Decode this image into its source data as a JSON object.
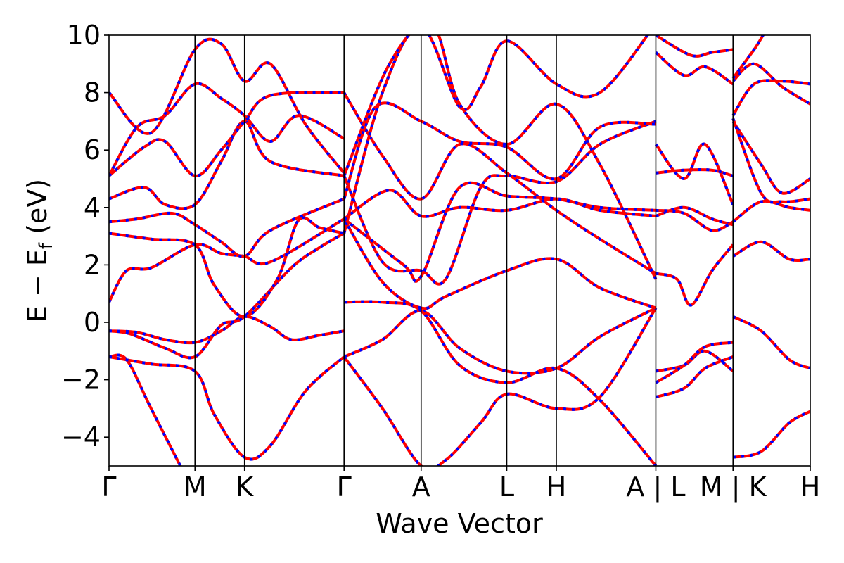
{
  "chart_data": {
    "type": "line",
    "title": "",
    "xlabel": "Wave Vector",
    "ylabel_main": "E − E",
    "ylabel_sub": "f",
    "ylabel_unit": " (eV)",
    "ylim": [
      -5,
      10
    ],
    "yticks": [
      -4,
      -2,
      0,
      2,
      4,
      6,
      8,
      10
    ],
    "ytick_labels": [
      "−4",
      "−2",
      "0",
      "2",
      "4",
      "6",
      "8",
      "10"
    ],
    "xlim": [
      0,
      1
    ],
    "kpoints": [
      {
        "label": "Γ",
        "x": 0.0
      },
      {
        "label": "M",
        "x": 0.1226
      },
      {
        "label": "K",
        "x": 0.1933
      },
      {
        "label": "Γ",
        "x": 0.3352
      },
      {
        "label": "A",
        "x": 0.4451
      },
      {
        "label": "L",
        "x": 0.5672
      },
      {
        "label": "H",
        "x": 0.6379
      },
      {
        "label": "A | L",
        "x": 0.7798
      },
      {
        "label": "M | K",
        "x": 0.8899
      },
      {
        "label": "H",
        "x": 1.0
      }
    ],
    "vlines": [
      0.1226,
      0.1933,
      0.3352,
      0.4451,
      0.5672,
      0.6379,
      0.7798,
      0.8899
    ],
    "grid": false,
    "legend": "none",
    "colors": {
      "primary": "#ff0000",
      "secondary": "#0000ff"
    },
    "series": [
      {
        "values": [
          [
            0.0,
            -1.2
          ],
          [
            0.025,
            -1.3
          ],
          [
            0.06,
            -3.0
          ],
          [
            0.1226,
            -6.0
          ]
        ]
      },
      {
        "values": [
          [
            0.0,
            -1.2
          ],
          [
            0.06,
            -1.45
          ],
          [
            0.1226,
            -1.7
          ],
          [
            0.15,
            -3.2
          ],
          [
            0.1933,
            -4.7
          ],
          [
            0.23,
            -4.3
          ],
          [
            0.28,
            -2.4
          ],
          [
            0.3352,
            -1.2
          ]
        ]
      },
      {
        "values": [
          [
            0.0,
            -0.3
          ],
          [
            0.04,
            -0.35
          ],
          [
            0.08,
            -0.6
          ],
          [
            0.1226,
            -0.7
          ],
          [
            0.16,
            -0.3
          ],
          [
            0.1933,
            0.2
          ],
          [
            0.23,
            -0.15
          ],
          [
            0.26,
            -0.6
          ],
          [
            0.3,
            -0.45
          ],
          [
            0.3352,
            -0.3
          ]
        ]
      },
      {
        "values": [
          [
            0.0,
            -0.3
          ],
          [
            0.03,
            -0.4
          ],
          [
            0.08,
            -0.9
          ],
          [
            0.1226,
            -1.2
          ],
          [
            0.16,
            -0.1
          ],
          [
            0.1933,
            0.2
          ],
          [
            0.26,
            1.9
          ],
          [
            0.3,
            2.6
          ],
          [
            0.3352,
            3.1
          ]
        ]
      },
      {
        "values": [
          [
            0.0,
            0.7
          ],
          [
            0.025,
            1.8
          ],
          [
            0.06,
            1.9
          ],
          [
            0.1226,
            2.7
          ],
          [
            0.16,
            2.4
          ],
          [
            0.1933,
            2.3
          ],
          [
            0.23,
            2.1
          ],
          [
            0.3352,
            3.6
          ]
        ]
      },
      {
        "values": [
          [
            0.0,
            3.1
          ],
          [
            0.06,
            2.9
          ],
          [
            0.1226,
            2.7
          ],
          [
            0.15,
            1.3
          ],
          [
            0.1933,
            0.2
          ],
          [
            0.24,
            1.5
          ],
          [
            0.27,
            3.55
          ],
          [
            0.3,
            3.3
          ],
          [
            0.3352,
            3.1
          ]
        ]
      },
      {
        "values": [
          [
            0.0,
            3.5
          ],
          [
            0.04,
            3.6
          ],
          [
            0.09,
            3.8
          ],
          [
            0.1226,
            3.4
          ],
          [
            0.16,
            2.8
          ],
          [
            0.1933,
            2.3
          ],
          [
            0.23,
            3.2
          ],
          [
            0.3352,
            4.3
          ]
        ]
      },
      {
        "values": [
          [
            0.0,
            4.3
          ],
          [
            0.05,
            4.7
          ],
          [
            0.08,
            4.1
          ],
          [
            0.1226,
            4.1
          ],
          [
            0.16,
            5.6
          ],
          [
            0.1933,
            7.0
          ],
          [
            0.23,
            5.6
          ],
          [
            0.3352,
            5.1
          ]
        ]
      },
      {
        "values": [
          [
            0.0,
            5.1
          ],
          [
            0.05,
            6.1
          ],
          [
            0.08,
            6.3
          ],
          [
            0.1226,
            5.1
          ],
          [
            0.16,
            6.0
          ],
          [
            0.1933,
            7.0
          ],
          [
            0.23,
            7.9
          ],
          [
            0.3352,
            8.0
          ]
        ]
      },
      {
        "values": [
          [
            0.0,
            5.1
          ],
          [
            0.04,
            6.8
          ],
          [
            0.08,
            7.2
          ],
          [
            0.1226,
            8.3
          ],
          [
            0.16,
            7.8
          ],
          [
            0.1933,
            7.2
          ],
          [
            0.23,
            6.3
          ],
          [
            0.27,
            7.2
          ],
          [
            0.3352,
            6.4
          ]
        ]
      },
      {
        "values": [
          [
            0.0,
            8.0
          ],
          [
            0.06,
            6.6
          ],
          [
            0.1226,
            9.5
          ],
          [
            0.16,
            9.7
          ],
          [
            0.1933,
            8.4
          ],
          [
            0.23,
            9.0
          ],
          [
            0.28,
            6.9
          ],
          [
            0.3352,
            5.2
          ]
        ]
      },
      {
        "values": [
          [
            0.3352,
            -1.2
          ],
          [
            0.39,
            -0.6
          ],
          [
            0.4451,
            0.4
          ],
          [
            0.5,
            -0.9
          ],
          [
            0.5672,
            -1.7
          ],
          [
            0.6379,
            -1.6
          ],
          [
            0.7,
            -0.5
          ],
          [
            0.7798,
            0.5
          ]
        ]
      },
      {
        "values": [
          [
            0.3352,
            0.7
          ],
          [
            0.39,
            0.7
          ],
          [
            0.4451,
            0.4
          ],
          [
            0.5,
            -1.5
          ],
          [
            0.5672,
            -2.1
          ],
          [
            0.6379,
            -1.6
          ],
          [
            0.7,
            -2.7
          ],
          [
            0.7798,
            -5.0
          ]
        ]
      },
      {
        "values": [
          [
            0.3352,
            -1.2
          ],
          [
            0.39,
            -3.0
          ],
          [
            0.4451,
            -5.0
          ],
          [
            0.48,
            -4.8
          ],
          [
            0.53,
            -3.5
          ],
          [
            0.5672,
            -2.5
          ],
          [
            0.6379,
            -3.0
          ],
          [
            0.7,
            -2.6
          ],
          [
            0.7798,
            0.5
          ]
        ]
      },
      {
        "values": [
          [
            0.3352,
            3.6
          ],
          [
            0.39,
            1.4
          ],
          [
            0.4451,
            0.5
          ],
          [
            0.48,
            0.9
          ],
          [
            0.5672,
            1.8
          ],
          [
            0.6379,
            2.2
          ],
          [
            0.7,
            1.2
          ],
          [
            0.7798,
            0.5
          ]
        ]
      },
      {
        "values": [
          [
            0.3352,
            5.1
          ],
          [
            0.39,
            2.1
          ],
          [
            0.4451,
            1.8
          ],
          [
            0.48,
            1.5
          ],
          [
            0.53,
            4.7
          ],
          [
            0.5672,
            5.1
          ],
          [
            0.6379,
            4.9
          ],
          [
            0.7,
            6.2
          ],
          [
            0.7798,
            7.0
          ]
        ]
      },
      {
        "values": [
          [
            0.3352,
            8.0
          ],
          [
            0.39,
            5.8
          ],
          [
            0.4451,
            4.3
          ],
          [
            0.5,
            6.2
          ],
          [
            0.5672,
            5.2
          ],
          [
            0.6379,
            3.9
          ],
          [
            0.7,
            2.9
          ],
          [
            0.7798,
            1.7
          ]
        ]
      },
      {
        "values": [
          [
            0.3352,
            4.3
          ],
          [
            0.38,
            7.5
          ],
          [
            0.4451,
            7.0
          ],
          [
            0.5,
            6.3
          ],
          [
            0.5672,
            6.1
          ],
          [
            0.6379,
            5.0
          ],
          [
            0.7,
            6.8
          ],
          [
            0.7798,
            6.9
          ]
        ]
      },
      {
        "values": [
          [
            0.3352,
            3.1
          ],
          [
            0.39,
            8.0
          ],
          [
            0.4451,
            10.3
          ],
          [
            0.5,
            7.5
          ],
          [
            0.53,
            8.2
          ],
          [
            0.5672,
            9.8
          ],
          [
            0.6379,
            8.3
          ],
          [
            0.7,
            8.0
          ],
          [
            0.7798,
            10.4
          ]
        ]
      },
      {
        "values": [
          [
            0.3352,
            3.6
          ],
          [
            0.4,
            4.6
          ],
          [
            0.4451,
            3.7
          ],
          [
            0.5,
            4.0
          ],
          [
            0.5672,
            3.9
          ],
          [
            0.6379,
            4.3
          ],
          [
            0.7,
            3.9
          ],
          [
            0.7798,
            3.7
          ]
        ]
      },
      {
        "values": [
          [
            0.3352,
            3.6
          ],
          [
            0.42,
            2.0
          ],
          [
            0.4451,
            1.6
          ],
          [
            0.5,
            4.7
          ],
          [
            0.5672,
            4.4
          ],
          [
            0.6379,
            4.3
          ],
          [
            0.7,
            4.0
          ],
          [
            0.7798,
            3.9
          ]
        ]
      },
      {
        "values": [
          [
            0.3352,
            5.1
          ],
          [
            0.4,
            9.0
          ],
          [
            0.46,
            10.4
          ],
          [
            0.5,
            7.6
          ],
          [
            0.5672,
            6.2
          ],
          [
            0.6379,
            7.6
          ],
          [
            0.7,
            5.5
          ],
          [
            0.7798,
            1.5
          ]
        ]
      },
      {
        "values": [
          [
            0.7798,
            -1.7
          ],
          [
            0.82,
            -1.5
          ],
          [
            0.85,
            -1.0
          ],
          [
            0.8899,
            -1.7
          ]
        ]
      },
      {
        "values": [
          [
            0.7798,
            -2.1
          ],
          [
            0.82,
            -1.5
          ],
          [
            0.85,
            -0.85
          ],
          [
            0.8899,
            -0.7
          ]
        ]
      },
      {
        "values": [
          [
            0.7798,
            -2.6
          ],
          [
            0.82,
            -2.3
          ],
          [
            0.85,
            -1.6
          ],
          [
            0.8899,
            -1.2
          ]
        ]
      },
      {
        "values": [
          [
            0.7798,
            1.7
          ],
          [
            0.81,
            1.5
          ],
          [
            0.83,
            0.6
          ],
          [
            0.86,
            1.8
          ],
          [
            0.8899,
            2.7
          ]
        ]
      },
      {
        "values": [
          [
            0.7798,
            3.7
          ],
          [
            0.82,
            4.0
          ],
          [
            0.86,
            3.6
          ],
          [
            0.8899,
            3.4
          ]
        ]
      },
      {
        "values": [
          [
            0.7798,
            3.9
          ],
          [
            0.82,
            3.8
          ],
          [
            0.86,
            3.2
          ],
          [
            0.8899,
            3.5
          ]
        ]
      },
      {
        "values": [
          [
            0.7798,
            5.2
          ],
          [
            0.82,
            5.3
          ],
          [
            0.86,
            5.3
          ],
          [
            0.8899,
            5.1
          ]
        ]
      },
      {
        "values": [
          [
            0.7798,
            6.2
          ],
          [
            0.82,
            5.0
          ],
          [
            0.85,
            6.2
          ],
          [
            0.8899,
            4.1
          ]
        ]
      },
      {
        "values": [
          [
            0.7798,
            9.4
          ],
          [
            0.82,
            8.6
          ],
          [
            0.85,
            8.9
          ],
          [
            0.8899,
            8.3
          ]
        ]
      },
      {
        "values": [
          [
            0.7798,
            10.0
          ],
          [
            0.83,
            9.3
          ],
          [
            0.86,
            9.4
          ],
          [
            0.8899,
            9.5
          ]
        ]
      },
      {
        "values": [
          [
            0.8899,
            0.2
          ],
          [
            0.93,
            -0.3
          ],
          [
            0.97,
            -1.3
          ],
          [
            1.0,
            -1.6
          ]
        ]
      },
      {
        "values": [
          [
            0.8899,
            -4.7
          ],
          [
            0.93,
            -4.5
          ],
          [
            0.97,
            -3.5
          ],
          [
            1.0,
            -3.1
          ]
        ]
      },
      {
        "values": [
          [
            0.8899,
            2.3
          ],
          [
            0.93,
            2.8
          ],
          [
            0.97,
            2.2
          ],
          [
            1.0,
            2.2
          ]
        ]
      },
      {
        "values": [
          [
            0.8899,
            3.5
          ],
          [
            0.93,
            4.2
          ],
          [
            0.97,
            4.0
          ],
          [
            1.0,
            3.9
          ]
        ]
      },
      {
        "values": [
          [
            0.8899,
            7.0
          ],
          [
            0.93,
            5.5
          ],
          [
            0.96,
            4.5
          ],
          [
            1.0,
            5.0
          ]
        ]
      },
      {
        "values": [
          [
            0.8899,
            7.1
          ],
          [
            0.93,
            4.5
          ],
          [
            0.96,
            4.2
          ],
          [
            1.0,
            4.3
          ]
        ]
      },
      {
        "values": [
          [
            0.8899,
            7.2
          ],
          [
            0.92,
            8.3
          ],
          [
            0.96,
            8.4
          ],
          [
            1.0,
            8.3
          ]
        ]
      },
      {
        "values": [
          [
            0.8899,
            8.4
          ],
          [
            0.92,
            9.0
          ],
          [
            0.96,
            8.2
          ],
          [
            1.0,
            7.6
          ]
        ]
      },
      {
        "values": [
          [
            0.8899,
            8.5
          ],
          [
            0.92,
            9.5
          ],
          [
            0.95,
            10.5
          ],
          [
            1.0,
            10.8
          ]
        ]
      }
    ]
  }
}
